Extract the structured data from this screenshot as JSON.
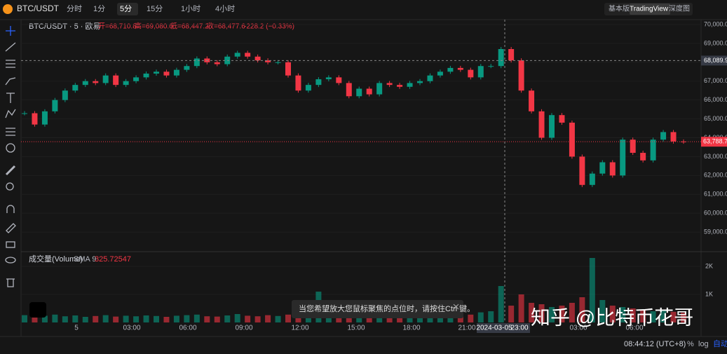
{
  "top_bar": {
    "symbol": "BTC/USDT",
    "intervals": [
      "分时",
      "1分",
      "5分",
      "15分",
      "1小时",
      "4小时"
    ],
    "selected_interval": "5分",
    "views": [
      "基本版",
      "TradingView",
      "深度图"
    ],
    "selected_view": "TradingView"
  },
  "legend": {
    "title": "BTC/USDT · 5 · 欧易",
    "open": "开=68,710.8",
    "high": "高=69,080.0",
    "low": "低=68,447.2",
    "close": "收=68,477.6",
    "change": "-228.2 (−0.33%)"
  },
  "price": {
    "ylim": [
      58000,
      70260
    ],
    "ticks": [
      {
        "value": 70000,
        "label": "70,000.0"
      },
      {
        "value": 69000,
        "label": "69,000.0"
      },
      {
        "value": 68000,
        "label": "68,000.0"
      },
      {
        "value": 67000,
        "label": "67,000.0"
      },
      {
        "value": 66000,
        "label": "66,000.0"
      },
      {
        "value": 65000,
        "label": "65,000.0"
      },
      {
        "value": 64000,
        "label": "64,000.0"
      },
      {
        "value": 63000,
        "label": "63,000.0"
      },
      {
        "value": 62000,
        "label": "62,000.0"
      },
      {
        "value": 61000,
        "label": "61,000.0"
      },
      {
        "value": 60000,
        "label": "60,000.0"
      },
      {
        "value": 59000,
        "label": "59,000.0"
      }
    ],
    "closes": [
      65300,
      64700,
      65400,
      66000,
      66500,
      66800,
      67000,
      66900,
      67300,
      66800,
      67000,
      67200,
      67400,
      67500,
      67300,
      67600,
      67800,
      68200,
      68000,
      67900,
      68300,
      68500,
      68300,
      68100,
      68000,
      68000,
      67300,
      66500,
      66800,
      67100,
      67200,
      66900,
      66200,
      66600,
      66300,
      66900,
      66800,
      66700,
      66900,
      67000,
      67300,
      67500,
      67700,
      67600,
      67200,
      67800,
      67800,
      68700,
      68100,
      66500,
      65400,
      64000,
      65200,
      64800,
      63000,
      61500,
      62100,
      62700,
      62000,
      63900,
      63200,
      62800,
      63900,
      64300,
      63800,
      63789
    ],
    "crosshair": {
      "value": 68089.9,
      "label": "68,089.9"
    },
    "last": {
      "value": 63788.7,
      "label": "63,788.7"
    }
  },
  "volume": {
    "title": "成交量(Volume)",
    "sma": "SMA 9",
    "sma_value": "325.72547",
    "ylim": [
      0,
      2500
    ],
    "ticks": [
      {
        "value": 1000,
        "label": "1K"
      },
      {
        "value": 2000,
        "label": "2K"
      }
    ],
    "values": [
      260,
      300,
      240,
      280,
      220,
      250,
      200,
      230,
      260,
      210,
      240,
      220,
      250,
      230,
      200,
      240,
      260,
      280,
      220,
      210,
      250,
      300,
      240,
      220,
      260,
      230,
      280,
      350,
      300,
      1100,
      320,
      280,
      300,
      260,
      240,
      280,
      250,
      230,
      260,
      280,
      300,
      320,
      340,
      300,
      280,
      360,
      400,
      1300,
      600,
      1000,
      700,
      650,
      550,
      600,
      700,
      900,
      2300,
      800,
      600,
      550,
      500,
      450,
      400,
      420,
      380,
      350
    ]
  },
  "time_axis": [
    "5",
    "03:00",
    "06:00",
    "09:00",
    "12:00",
    "15:00",
    "18:00",
    "21:00",
    "2024-03-05",
    "23:00",
    "03:00",
    "06:00"
  ],
  "toast": "当您希望放大您鼠标聚焦的点位时，请按住Ctrl 键。",
  "watermark": "知乎 @比特币花哥",
  "bottom_bar": {
    "clock": "08:44:12 (UTC+8)",
    "percent": "%",
    "log": "log",
    "auto": "自动"
  }
}
